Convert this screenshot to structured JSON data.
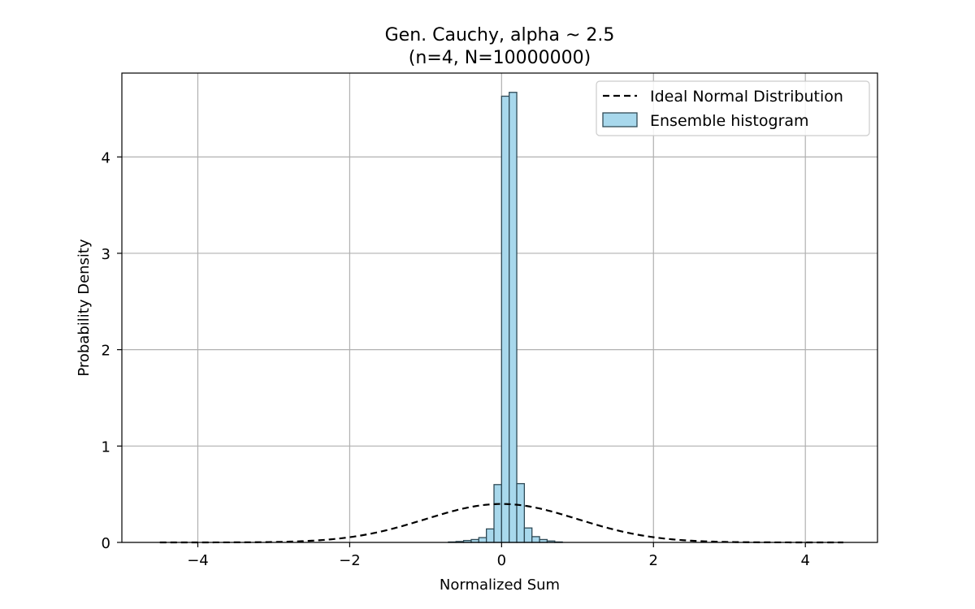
{
  "chart_data": {
    "type": "bar",
    "title": "Gen. Cauchy, alpha ~ 2.5",
    "subtitle": "(n=4, N=10000000)",
    "xlabel": "Normalized Sum",
    "ylabel": "Probability Density",
    "xlim": [
      -5.0,
      4.95
    ],
    "ylim": [
      0,
      4.87
    ],
    "xticks": [
      -4,
      -2,
      0,
      2,
      4
    ],
    "yticks": [
      0,
      1,
      2,
      3,
      4
    ],
    "xtick_labels": [
      "−4",
      "−2",
      "0",
      "2",
      "4"
    ],
    "ytick_labels": [
      "0",
      "1",
      "2",
      "3",
      "4"
    ],
    "grid": true,
    "legend_position": "upper right",
    "histogram": {
      "name": "Ensemble histogram",
      "bin_width": 0.1,
      "color": "#a8d8ec",
      "edge_color": "#2f4a56",
      "bins": [
        {
          "left": -0.7,
          "value": 0.005
        },
        {
          "left": -0.6,
          "value": 0.01
        },
        {
          "left": -0.5,
          "value": 0.02
        },
        {
          "left": -0.4,
          "value": 0.03
        },
        {
          "left": -0.3,
          "value": 0.05
        },
        {
          "left": -0.2,
          "value": 0.14
        },
        {
          "left": -0.1,
          "value": 0.6
        },
        {
          "left": 0.0,
          "value": 4.63
        },
        {
          "left": 0.1,
          "value": 4.67
        },
        {
          "left": 0.2,
          "value": 0.61
        },
        {
          "left": 0.3,
          "value": 0.15
        },
        {
          "left": 0.4,
          "value": 0.06
        },
        {
          "left": 0.5,
          "value": 0.03
        },
        {
          "left": 0.6,
          "value": 0.015
        },
        {
          "left": 0.7,
          "value": 0.005
        }
      ]
    },
    "curve": {
      "name": "Ideal Normal Distribution",
      "style": "dashed",
      "color": "#000000",
      "function": "standard normal pdf",
      "x_range": [
        -4.5,
        4.5
      ]
    }
  }
}
